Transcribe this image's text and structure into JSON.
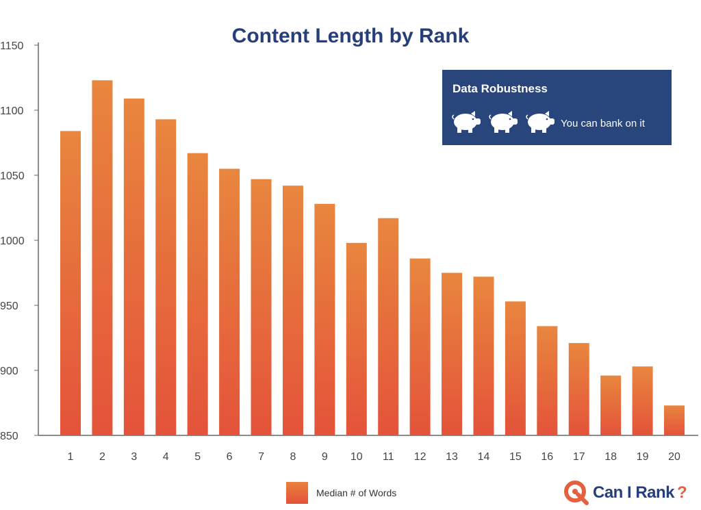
{
  "chart_data": {
    "type": "bar",
    "title": "Content Length by Rank",
    "xlabel": "",
    "ylabel": "",
    "categories": [
      "1",
      "2",
      "3",
      "4",
      "5",
      "6",
      "7",
      "8",
      "9",
      "10",
      "11",
      "12",
      "13",
      "14",
      "15",
      "16",
      "17",
      "18",
      "19",
      "20"
    ],
    "series": [
      {
        "name": "Median # of Words",
        "values": [
          1084,
          1123,
          1109,
          1093,
          1067,
          1055,
          1047,
          1042,
          1028,
          998,
          1017,
          986,
          975,
          972,
          953,
          934,
          921,
          896,
          903,
          873
        ]
      }
    ],
    "ylim": [
      850,
      1150
    ],
    "yticks": [
      850,
      900,
      950,
      1000,
      1050,
      1100,
      1150
    ],
    "grid": false,
    "legend_position": "bottom",
    "colors": {
      "bar_top": "#e8863e",
      "bar_bottom": "#e4533a",
      "title": "#263f7a"
    }
  },
  "robustness": {
    "heading": "Data Robustness",
    "text": "You can bank on it",
    "icon": "piggy-bank-icon",
    "count": 3,
    "background": "#28457c"
  },
  "logo": {
    "text": "Can I Rank",
    "mark": "?"
  }
}
